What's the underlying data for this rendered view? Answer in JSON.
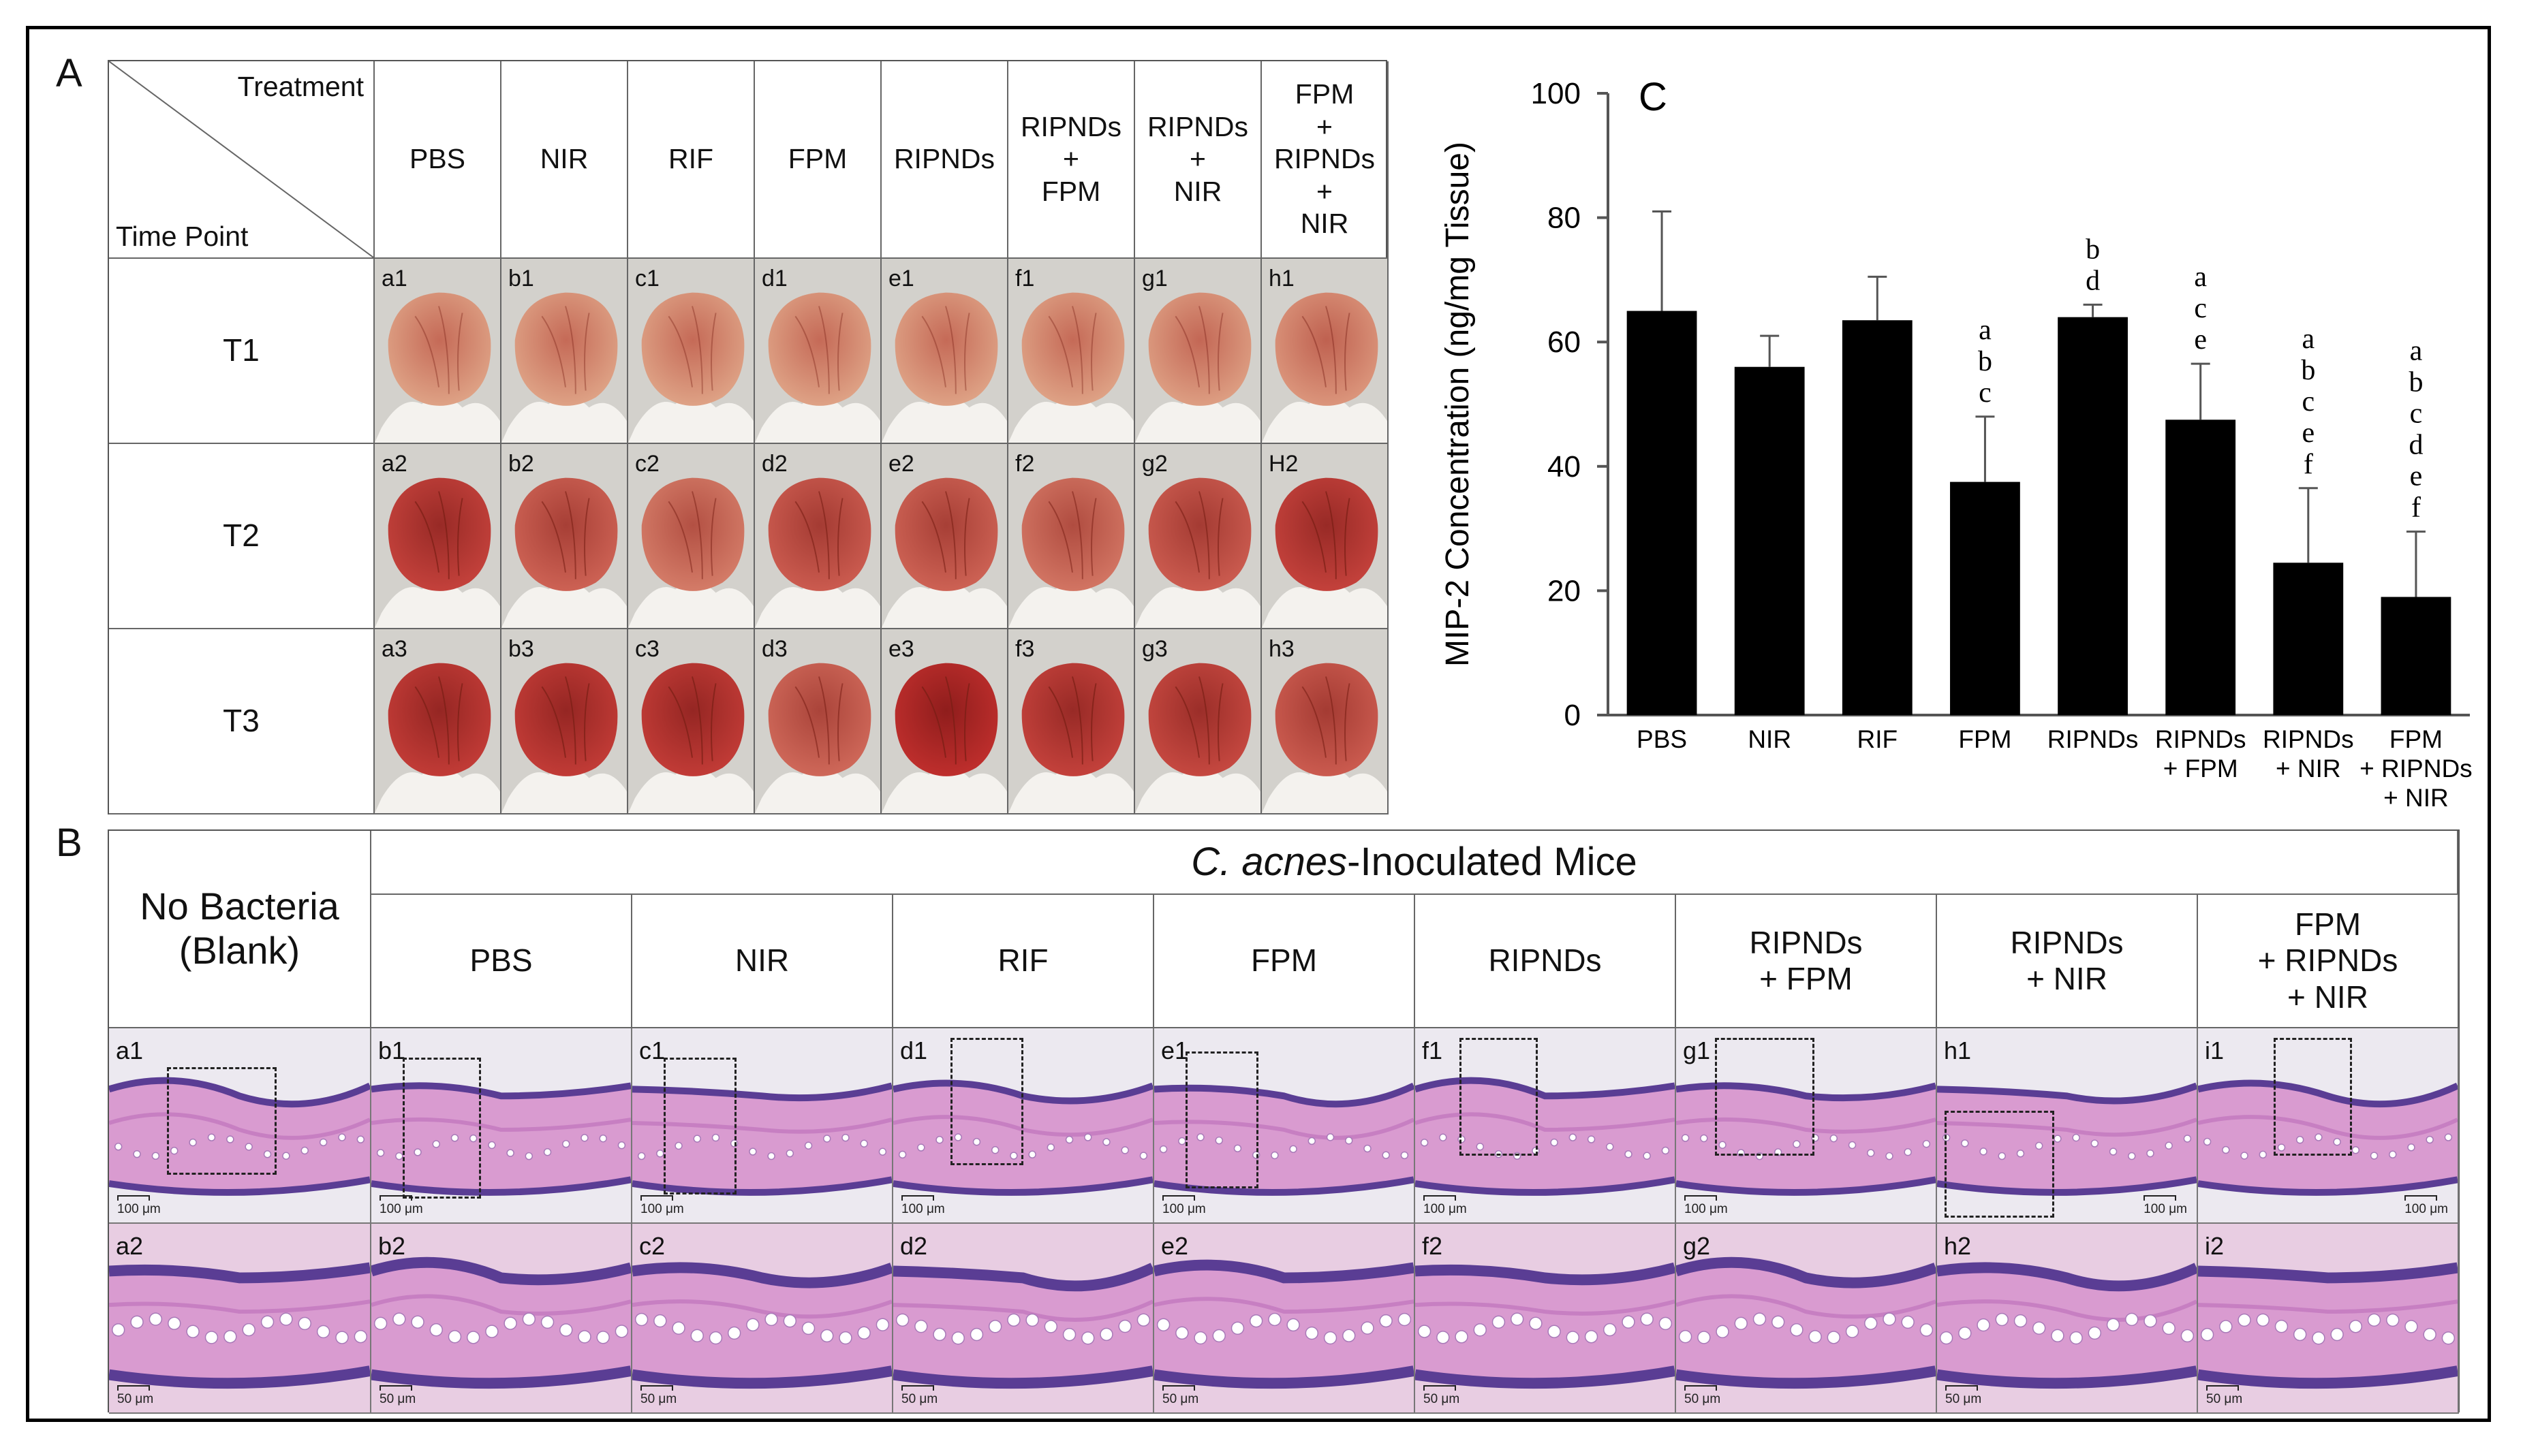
{
  "panels": {
    "a": "A",
    "b": "B",
    "c": "C"
  },
  "panel_a": {
    "corner_top": "Treatment",
    "corner_bottom": "Time Point",
    "columns": [
      "PBS",
      "NIR",
      "RIF",
      "FPM",
      "RIPNDs",
      "RIPNDs\n+\nFPM",
      "RIPNDs\n+\nNIR",
      "FPM\n+\nRIPNDs\n+\nNIR"
    ],
    "rows": [
      {
        "label": "T1",
        "cells": [
          "a1",
          "b1",
          "c1",
          "d1",
          "e1",
          "f1",
          "g1",
          "h1"
        ],
        "redness": [
          0.05,
          0.05,
          0.05,
          0.05,
          0.05,
          0.05,
          0.08,
          0.15
        ]
      },
      {
        "label": "T2",
        "cells": [
          "a2",
          "b2",
          "c2",
          "d2",
          "e2",
          "f2",
          "g2",
          "H2"
        ],
        "redness": [
          0.8,
          0.55,
          0.35,
          0.6,
          0.55,
          0.4,
          0.6,
          0.8
        ]
      },
      {
        "label": "T3",
        "cells": [
          "a3",
          "b3",
          "c3",
          "d3",
          "e3",
          "f3",
          "g3",
          "h3"
        ],
        "redness": [
          0.85,
          0.85,
          0.85,
          0.5,
          0.95,
          0.8,
          0.75,
          0.6
        ]
      }
    ]
  },
  "panel_b": {
    "blank_header": "No Bacteria\n(Blank)",
    "group_header_italic": "C. acnes",
    "group_header_rest": "-Inoculated Mice",
    "columns": [
      "PBS",
      "NIR",
      "RIF",
      "FPM",
      "RIPNDs",
      "RIPNDs\n+ FPM",
      "RIPNDs\n+ NIR",
      "FPM\n+ RIPNDs\n+ NIR"
    ],
    "row1_labels": [
      "a1",
      "b1",
      "c1",
      "d1",
      "e1",
      "f1",
      "g1",
      "h1",
      "i1"
    ],
    "row2_labels": [
      "a2",
      "b2",
      "c2",
      "d2",
      "e2",
      "f2",
      "g2",
      "h2",
      "i2"
    ],
    "scale_low": "100 μm",
    "scale_high": "50 μm"
  },
  "chart_data": {
    "type": "bar",
    "title": "",
    "ylabel": "MIP-2 Concentration (ng/mg Tissue)",
    "xlabel": "",
    "ylim": [
      0,
      100
    ],
    "yticks": [
      0,
      20,
      40,
      60,
      80,
      100
    ],
    "categories": [
      "PBS",
      "NIR",
      "RIF",
      "FPM",
      "RIPNDs",
      "RIPNDs\n+ FPM",
      "RIPNDs\n+ NIR",
      "FPM\n+ RIPNDs\n+ NIR"
    ],
    "values": [
      65,
      56,
      63.5,
      37.5,
      64,
      47.5,
      24.5,
      19
    ],
    "errors": [
      16,
      5,
      7,
      10.5,
      2,
      9,
      12,
      10.5
    ],
    "annotations": [
      "",
      "",
      "",
      "a\nb\nc",
      "b\nd",
      "a\nc\ne",
      "a\nb\nc\ne\nf",
      "a\nb\nc\nd\ne\nf"
    ],
    "colors": {
      "bar": "#000000",
      "axis": "#555555"
    }
  }
}
